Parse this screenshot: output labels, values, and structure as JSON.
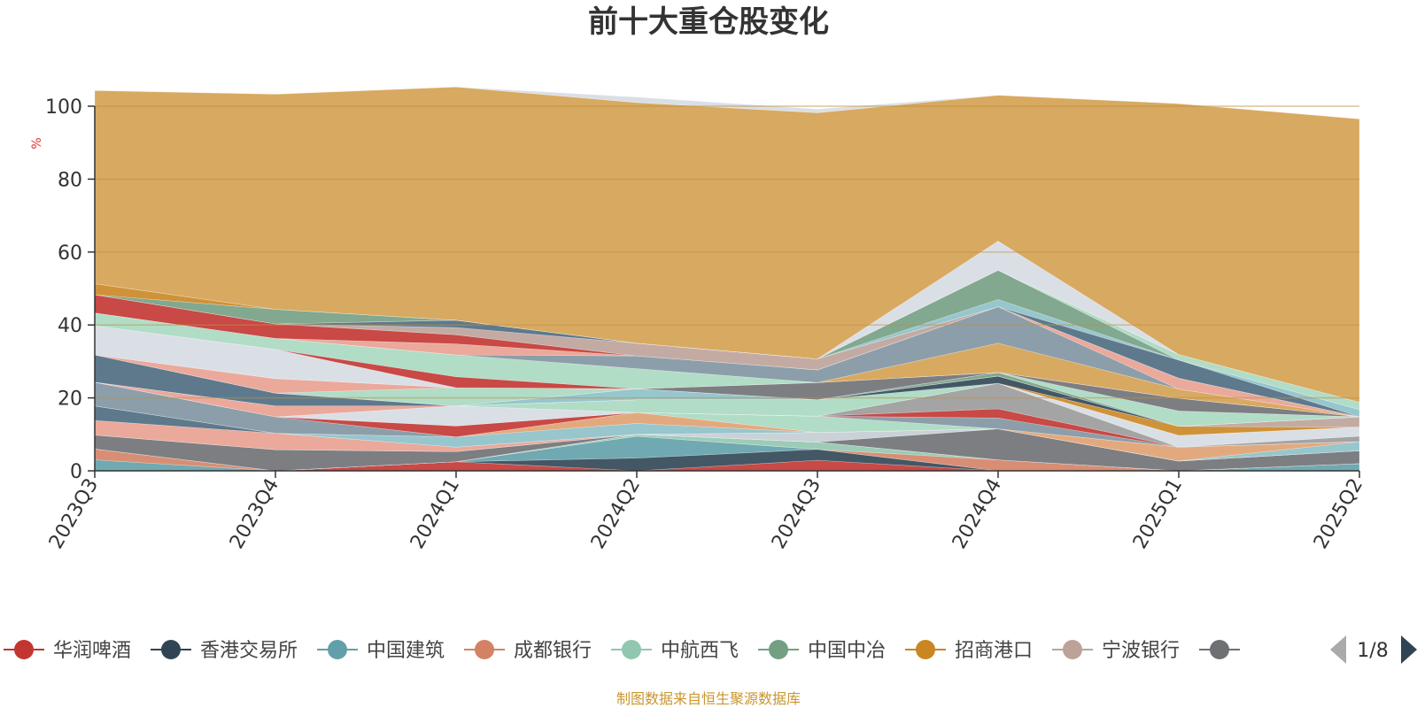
{
  "colors": {
    "background": "#ffffff",
    "axis": "#333333",
    "grid": "#c09040",
    "title": "#333333",
    "unit": "#e03030",
    "footer": "#c8962e"
  },
  "chart_data": {
    "type": "area",
    "stacked": true,
    "title": "前十大重仓股变化",
    "unit": "%",
    "ylim": [
      0,
      100
    ],
    "yticks": [
      0,
      20,
      40,
      60,
      80,
      100
    ],
    "grid": true,
    "legend_position": "bottom",
    "categories": [
      "2023Q3",
      "2023Q4",
      "2024Q1",
      "2024Q2",
      "2024Q3",
      "2024Q4",
      "2025Q1",
      "2025Q2"
    ],
    "series": [
      {
        "name": "华润啤酒",
        "color": "#c23531",
        "values": [
          0,
          0,
          2.5,
          0,
          2.9,
          0,
          0,
          0
        ]
      },
      {
        "name": "香港交易所",
        "color": "#2f4554",
        "values": [
          0,
          0,
          0,
          3.5,
          3.0,
          0,
          0,
          0
        ]
      },
      {
        "name": "中国建筑",
        "color": "#61a0a8",
        "values": [
          3.0,
          0,
          0,
          6.0,
          0,
          0,
          0,
          2.0
        ]
      },
      {
        "name": "成都银行",
        "color": "#d48265",
        "values": [
          3.0,
          0,
          0,
          0,
          0,
          3.0,
          0,
          0
        ]
      },
      {
        "name": "中航西飞",
        "color": "#91c7ae",
        "values": [
          0,
          0,
          0,
          0.5,
          2.0,
          0,
          0,
          0
        ]
      },
      {
        "name": "中国中冶",
        "color": "#749f83",
        "values": [
          0,
          0,
          0,
          0,
          0,
          0,
          0,
          0
        ]
      },
      {
        "name": "招商港口",
        "color": "#ca8622",
        "values": [
          0,
          0,
          0,
          0,
          0,
          0,
          0,
          0
        ]
      },
      {
        "name": "宁波银行",
        "color": "#bda29a",
        "values": [
          0,
          0,
          0,
          0,
          0,
          0,
          0,
          0
        ]
      },
      {
        "name": "",
        "color": "#6e7074",
        "values": [
          3.8,
          5.8,
          2.8,
          0,
          0,
          8.5,
          2.7,
          3.5
        ]
      },
      {
        "name": "",
        "color": "#546570",
        "values": [
          0,
          0,
          0,
          0,
          0,
          0,
          0,
          0
        ]
      },
      {
        "name": "",
        "color": "#c4ccd3",
        "values": [
          0,
          0,
          0,
          0,
          2.6,
          0,
          0,
          0
        ]
      },
      {
        "name": "",
        "color": "#e8a090",
        "values": [
          4.0,
          4.5,
          1.2,
          0,
          0,
          0,
          0,
          0
        ]
      },
      {
        "name": "",
        "color": "#4d6a80",
        "values": [
          4.0,
          0,
          0,
          0,
          0,
          0,
          0,
          0
        ]
      },
      {
        "name": "",
        "color": "#8cc0c8",
        "values": [
          0,
          0,
          2.8,
          3.0,
          0,
          0,
          0,
          2.5
        ]
      },
      {
        "name": "",
        "color": "#e0a070",
        "values": [
          0,
          0,
          0,
          3.0,
          0,
          0,
          3.8,
          0
        ]
      },
      {
        "name": "",
        "color": "#a8d8c0",
        "values": [
          0,
          0,
          0,
          0,
          4.5,
          0,
          0,
          0
        ]
      },
      {
        "name": "",
        "color": "#7f94a0",
        "values": [
          6.5,
          4.5,
          0,
          0,
          0,
          3.0,
          0,
          0
        ]
      },
      {
        "name": "",
        "color": "#c23531",
        "values": [
          0,
          0,
          3.0,
          0,
          0,
          2.5,
          0,
          0
        ]
      },
      {
        "name": "",
        "color": "#9a9a9a",
        "values": [
          0,
          0,
          0,
          0,
          0,
          7.0,
          0,
          1.5
        ]
      },
      {
        "name": "",
        "color": "#d6dbe3",
        "values": [
          0,
          0,
          5.5,
          0,
          0,
          0,
          3.2,
          2.5
        ]
      },
      {
        "name": "",
        "color": "#e8a090",
        "values": [
          0,
          3.0,
          0,
          0,
          0,
          0,
          0,
          0
        ]
      },
      {
        "name": "",
        "color": "#a8d8c0",
        "values": [
          0,
          0,
          0,
          3.5,
          4.5,
          0,
          0,
          0
        ]
      },
      {
        "name": "",
        "color": "#ca8622",
        "values": [
          0,
          0,
          0,
          0,
          0,
          0,
          2.5,
          0
        ]
      },
      {
        "name": "",
        "color": "#2f4554",
        "values": [
          0,
          0,
          0,
          0,
          0,
          2.0,
          0,
          0
        ]
      },
      {
        "name": "",
        "color": "#bda29a",
        "values": [
          0,
          0,
          0,
          0,
          0,
          0,
          0,
          2.8
        ]
      },
      {
        "name": "",
        "color": "#4d6a80",
        "values": [
          7.5,
          3.5,
          0,
          0,
          0,
          0,
          0,
          0
        ]
      },
      {
        "name": "",
        "color": "#8cc0c8",
        "values": [
          0,
          0,
          0,
          3.0,
          0,
          0,
          0,
          0
        ]
      },
      {
        "name": "",
        "color": "#749f83",
        "values": [
          0,
          0,
          0,
          0,
          0,
          1.0,
          0,
          0
        ]
      },
      {
        "name": "",
        "color": "#a8d8c0",
        "values": [
          0,
          0,
          5.0,
          0,
          0,
          0,
          4.2,
          0
        ]
      },
      {
        "name": "",
        "color": "#e8a090",
        "values": [
          0,
          4.0,
          0,
          0,
          0,
          0,
          0,
          0
        ]
      },
      {
        "name": "",
        "color": "#6e7074",
        "values": [
          0,
          0,
          0,
          0,
          4.7,
          0,
          3.5,
          0
        ]
      },
      {
        "name": "",
        "color": "#d6dbe3",
        "values": [
          8.0,
          8.0,
          0,
          0,
          0,
          0,
          0,
          0
        ]
      },
      {
        "name": "",
        "color": "#c23531",
        "values": [
          0,
          0,
          3.0,
          0,
          0,
          0,
          0,
          0
        ]
      },
      {
        "name": "",
        "color": "#a8d8c0",
        "values": [
          3.5,
          3.0,
          6.0,
          5.5,
          0,
          0,
          0,
          0
        ]
      },
      {
        "name": "",
        "color": "#d4a050",
        "values": [
          0,
          0,
          0,
          0,
          0,
          8.0,
          2.5,
          0
        ]
      },
      {
        "name": "",
        "color": "#7f94a0",
        "values": [
          0,
          0,
          0,
          3.5,
          3.5,
          10.0,
          0,
          0
        ]
      },
      {
        "name": "",
        "color": "#e8a090",
        "values": [
          0,
          0,
          3.0,
          0,
          0,
          0,
          3.0,
          0
        ]
      },
      {
        "name": "",
        "color": "#c23531",
        "values": [
          5.0,
          4.0,
          2.5,
          0,
          0,
          0,
          0,
          0
        ]
      },
      {
        "name": "",
        "color": "#bda29a",
        "values": [
          0,
          0,
          2.0,
          3.5,
          3.0,
          0,
          0,
          0
        ]
      },
      {
        "name": "",
        "color": "#4d6a80",
        "values": [
          0,
          0,
          2.0,
          0,
          0,
          0,
          5.0,
          0
        ]
      },
      {
        "name": "",
        "color": "#8cc0c8",
        "values": [
          0,
          0,
          0,
          0,
          0,
          2.0,
          0,
          2.0
        ]
      },
      {
        "name": "",
        "color": "#749f83",
        "values": [
          0,
          4.0,
          0,
          0,
          0,
          8.0,
          0,
          0
        ]
      },
      {
        "name": "",
        "color": "#a8d8c0",
        "values": [
          0,
          0,
          0,
          0,
          0,
          0,
          1.5,
          2.0
        ]
      },
      {
        "name": "",
        "color": "#ca8622",
        "values": [
          3.0,
          0,
          0,
          0,
          0,
          0,
          0,
          0
        ]
      },
      {
        "name": "",
        "color": "#d6dbe3",
        "values": [
          0,
          0,
          0,
          0,
          0,
          8.0,
          0,
          0
        ]
      },
      {
        "name": "",
        "color": "#d4a050",
        "values": [
          53.0,
          59.0,
          64.0,
          66.0,
          67.5,
          40.0,
          68.8,
          77.7
        ]
      },
      {
        "name": "",
        "color": "#d6dbe3",
        "values": [
          0,
          0,
          0,
          1.5,
          1.0,
          0,
          0,
          0
        ]
      }
    ]
  },
  "legend": {
    "items": [
      {
        "label": "华润啤酒",
        "color": "#c23531"
      },
      {
        "label": "香港交易所",
        "color": "#2f4554"
      },
      {
        "label": "中国建筑",
        "color": "#61a0a8"
      },
      {
        "label": "成都银行",
        "color": "#d48265"
      },
      {
        "label": "中航西飞",
        "color": "#91c7ae"
      },
      {
        "label": "中国中冶",
        "color": "#749f83"
      },
      {
        "label": "招商港口",
        "color": "#ca8622"
      },
      {
        "label": "宁波银行",
        "color": "#bda29a"
      },
      {
        "label": "",
        "color": "#6e7074"
      }
    ],
    "page": "1/8"
  },
  "footer": {
    "text": "制图数据来自恒生聚源数据库"
  }
}
